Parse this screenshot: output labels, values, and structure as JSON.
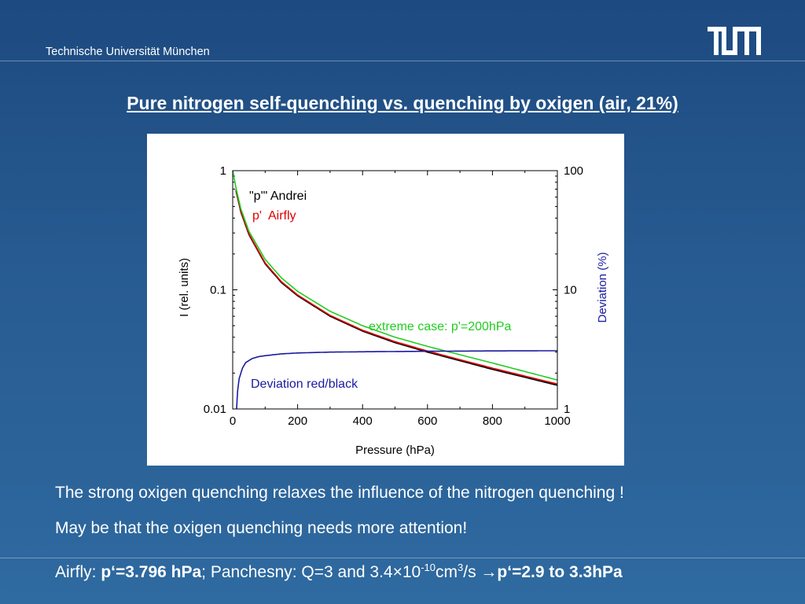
{
  "header": {
    "institution": "Technische Universität München",
    "logo_text": "TUM"
  },
  "slide": {
    "title": "Pure nitrogen self-quenching vs. quenching by oxigen (air, 21%)",
    "text1": "The strong oxigen quenching relaxes the influence of the nitrogen quenching !",
    "text2": "May be that the oxigen quenching needs more attention!",
    "formula": {
      "a": "Airfly: ",
      "b": "p‘=3.796 hPa",
      "c": "; Panchesny: Q=3 and 3.4×10",
      "exp1": "-10",
      "d": "cm",
      "exp2": "3",
      "e": "/s ",
      "arrow": "→",
      "f": "p‘=2.9 to 3.3hPa"
    }
  },
  "chart_data": {
    "type": "line",
    "xlabel": "Pressure (hPa)",
    "ylabel": "I (rel. units)",
    "y2label": "Deviation (%)",
    "xlim": [
      0,
      1000
    ],
    "ylim": [
      0.01,
      1
    ],
    "y2lim": [
      1,
      100
    ],
    "yscale": "log",
    "y2scale": "log",
    "x_ticks": [
      "0",
      "200",
      "400",
      "600",
      "800",
      "1000"
    ],
    "y_ticks": [
      "0.01",
      "0.1",
      "1"
    ],
    "y2_ticks": [
      "1",
      "10",
      "100"
    ],
    "legend": [
      {
        "label": "\"p'\" Andrei",
        "color": "#000000"
      },
      {
        "label": "p'  Airfly",
        "color": "#e00000"
      }
    ],
    "annotations": [
      {
        "text": "extreme case: p'=200hPa",
        "color": "#22cc22"
      },
      {
        "text": "Deviation red/black",
        "color": "#1a1aa0"
      }
    ],
    "series": [
      {
        "name": "\"p'\" Andrei",
        "color": "#000000",
        "axis": "left",
        "x": [
          10,
          25,
          50,
          100,
          150,
          200,
          300,
          400,
          500,
          600,
          800,
          1000
        ],
        "y": [
          0.68,
          0.45,
          0.29,
          0.165,
          0.115,
          0.089,
          0.06,
          0.045,
          0.036,
          0.03,
          0.0215,
          0.0158
        ]
      },
      {
        "name": "p'  Airfly",
        "color": "#e00000",
        "axis": "left",
        "x": [
          10,
          25,
          50,
          100,
          150,
          200,
          300,
          400,
          500,
          600,
          800,
          1000
        ],
        "y": [
          0.695,
          0.46,
          0.295,
          0.168,
          0.117,
          0.0905,
          0.061,
          0.0458,
          0.0367,
          0.0306,
          0.022,
          0.0162
        ]
      },
      {
        "name": "extreme case: p'=200hPa",
        "color": "#22cc22",
        "axis": "left",
        "x": [
          0,
          10,
          25,
          50,
          100,
          150,
          200,
          300,
          400,
          500,
          600,
          800,
          1000
        ],
        "y": [
          1.0,
          0.72,
          0.48,
          0.31,
          0.18,
          0.126,
          0.097,
          0.066,
          0.05,
          0.04,
          0.0335,
          0.0243,
          0.0175
        ]
      },
      {
        "name": "Deviation red/black",
        "color": "#1a1aa0",
        "axis": "right",
        "x": [
          12,
          15,
          20,
          30,
          40,
          60,
          80,
          100,
          150,
          200,
          300,
          400,
          600,
          800,
          1000
        ],
        "y": [
          1.0,
          1.4,
          1.8,
          2.2,
          2.45,
          2.65,
          2.75,
          2.8,
          2.9,
          2.95,
          3.0,
          3.02,
          3.05,
          3.07,
          3.08
        ]
      }
    ]
  }
}
